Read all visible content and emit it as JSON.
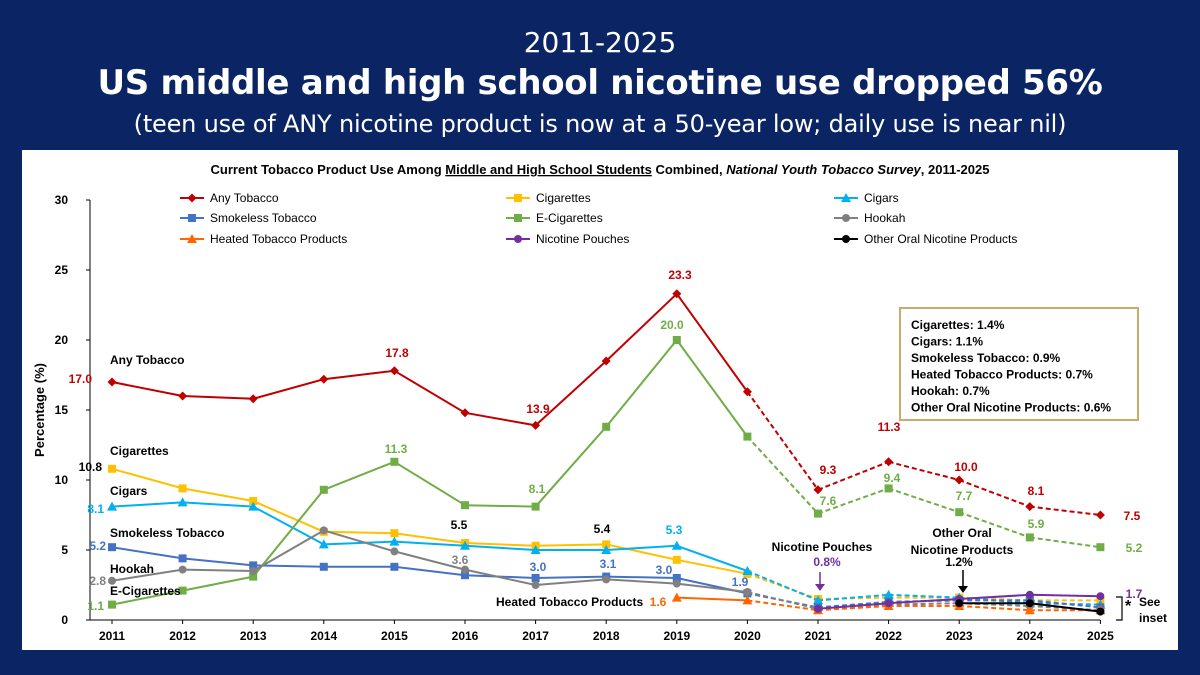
{
  "header": {
    "years": "2011-2025",
    "headline": "US middle and high school nicotine use dropped 56%",
    "subtitle": "(teen use of ANY nicotine product is now at a 50-year low; daily use is near nil)"
  },
  "chart_data": {
    "type": "line",
    "title_parts": [
      "Current Tobacco Product Use Among ",
      "Middle and High School Students",
      " Combined, ",
      "National Youth Tobacco Survey",
      ", 2011-2025"
    ],
    "ylabel": "Percentage (%)",
    "xlabel": "",
    "ylim": [
      0,
      30
    ],
    "yticks": [
      0,
      5,
      10,
      15,
      20,
      25,
      30
    ],
    "x": [
      "2011",
      "2012",
      "2013",
      "2014",
      "2015",
      "2016",
      "2017",
      "2018",
      "2019",
      "2020",
      "2021",
      "2022",
      "2023",
      "2024",
      "2025"
    ],
    "series": [
      {
        "name": "Any Tobacco",
        "color": "#c00000",
        "marker": "diamond",
        "values": [
          17.0,
          16.0,
          15.8,
          17.2,
          17.8,
          14.8,
          13.9,
          18.5,
          23.3,
          16.3,
          9.3,
          11.3,
          10.0,
          8.1,
          7.5
        ],
        "dashed_from": 9
      },
      {
        "name": "Cigarettes",
        "color": "#ffc000",
        "marker": "square",
        "values": [
          10.8,
          9.4,
          8.5,
          6.3,
          6.2,
          5.5,
          5.3,
          5.4,
          4.3,
          3.3,
          1.5,
          1.6,
          1.6,
          1.4,
          1.4
        ],
        "dashed_from": 9
      },
      {
        "name": "Cigars",
        "color": "#00b0f0",
        "marker": "triangle",
        "values": [
          8.1,
          8.4,
          8.1,
          5.4,
          5.6,
          5.3,
          5.0,
          5.0,
          5.3,
          3.5,
          1.4,
          1.8,
          1.6,
          1.2,
          1.1
        ],
        "dashed_from": 9
      },
      {
        "name": "Smokeless Tobacco",
        "color": "#4472c4",
        "marker": "square",
        "values": [
          5.2,
          4.4,
          3.9,
          3.8,
          3.8,
          3.2,
          3.0,
          3.1,
          3.0,
          1.9,
          0.9,
          1.3,
          1.4,
          1.4,
          0.9
        ],
        "dashed_from": 9
      },
      {
        "name": "E-Cigarettes",
        "color": "#70ad47",
        "marker": "square",
        "values": [
          1.1,
          2.1,
          3.1,
          9.3,
          11.3,
          8.2,
          8.1,
          13.8,
          20.0,
          13.1,
          7.6,
          9.4,
          7.7,
          5.9,
          5.2
        ],
        "dashed_from": 9
      },
      {
        "name": "Hookah",
        "color": "#808080",
        "marker": "circle",
        "values": [
          2.8,
          3.6,
          3.5,
          6.4,
          4.9,
          3.6,
          2.5,
          2.9,
          2.6,
          2.0,
          0.8,
          1.1,
          1.2,
          1.0,
          0.7
        ],
        "dashed_from": 9
      },
      {
        "name": "Heated Tobacco Products",
        "color": "#ff6600",
        "marker": "triangle",
        "values": [
          null,
          null,
          null,
          null,
          null,
          null,
          null,
          null,
          1.6,
          1.4,
          0.7,
          1.0,
          1.0,
          0.7,
          0.7
        ],
        "dashed_from": 9
      },
      {
        "name": "Nicotine Pouches",
        "color": "#7030a0",
        "marker": "circle",
        "values": [
          null,
          null,
          null,
          null,
          null,
          null,
          null,
          null,
          null,
          null,
          0.8,
          1.2,
          1.5,
          1.8,
          1.7
        ],
        "dashed_from": 99
      },
      {
        "name": "Other Oral Nicotine Products",
        "color": "#000000",
        "marker": "circle",
        "values": [
          null,
          null,
          null,
          null,
          null,
          null,
          null,
          null,
          null,
          null,
          null,
          null,
          1.2,
          1.2,
          0.6
        ],
        "dashed_from": 99
      }
    ],
    "data_labels": [
      {
        "text": "17.0",
        "color": "#c00000"
      },
      {
        "text": "17.8",
        "color": "#c00000"
      },
      {
        "text": "13.9",
        "color": "#c00000"
      },
      {
        "text": "23.3",
        "color": "#c00000"
      },
      {
        "text": "9.3",
        "color": "#c00000"
      },
      {
        "text": "11.3",
        "color": "#c00000"
      },
      {
        "text": "10.0",
        "color": "#c00000"
      },
      {
        "text": "8.1",
        "color": "#c00000"
      },
      {
        "text": "7.5",
        "color": "#c00000"
      },
      {
        "text": "10.8",
        "color": "#000000"
      },
      {
        "text": "5.5",
        "color": "#000000"
      },
      {
        "text": "5.4",
        "color": "#000000"
      },
      {
        "text": "8.1",
        "color": "#00b0f0"
      },
      {
        "text": "5.3",
        "color": "#00b0f0"
      },
      {
        "text": "5.2",
        "color": "#4472c4"
      },
      {
        "text": "3.0",
        "color": "#4472c4"
      },
      {
        "text": "3.1",
        "color": "#4472c4"
      },
      {
        "text": "3.0",
        "color": "#4472c4"
      },
      {
        "text": "1.9",
        "color": "#4472c4"
      },
      {
        "text": "2.8",
        "color": "#808080"
      },
      {
        "text": "3.6",
        "color": "#808080"
      },
      {
        "text": "1.1",
        "color": "#70ad47"
      },
      {
        "text": "11.3",
        "color": "#70ad47"
      },
      {
        "text": "8.1",
        "color": "#70ad47"
      },
      {
        "text": "20.0",
        "color": "#70ad47"
      },
      {
        "text": "7.6",
        "color": "#70ad47"
      },
      {
        "text": "9.4",
        "color": "#70ad47"
      },
      {
        "text": "7.7",
        "color": "#70ad47"
      },
      {
        "text": "5.9",
        "color": "#70ad47"
      },
      {
        "text": "5.2",
        "color": "#70ad47"
      },
      {
        "text": "1.6",
        "color": "#ff6600"
      },
      {
        "text": "0.8%",
        "color": "#7030a0"
      },
      {
        "text": "1.7",
        "color": "#7030a0"
      },
      {
        "text": "1.2%",
        "color": "#000000"
      }
    ],
    "series_labels": [
      "Any Tobacco",
      "Cigarettes",
      "Cigars",
      "Smokeless Tobacco",
      "Hookah",
      "E-Cigarettes",
      "Heated Tobacco Products"
    ],
    "annotations": {
      "nicotine_pouches": "Nicotine Pouches",
      "other_oral": [
        "Other Oral",
        "Nicotine Products"
      ],
      "asterisk": "*",
      "see_inset": [
        "See",
        "inset"
      ]
    },
    "inset": [
      "Cigarettes: 1.4%",
      "Cigars: 1.1%",
      "Smokeless Tobacco: 0.9%",
      "Heated Tobacco Products: 0.7%",
      "Hookah: 0.7%",
      "Other Oral Nicotine Products: 0.6%"
    ],
    "inset_border_color": "#c9a96e"
  }
}
